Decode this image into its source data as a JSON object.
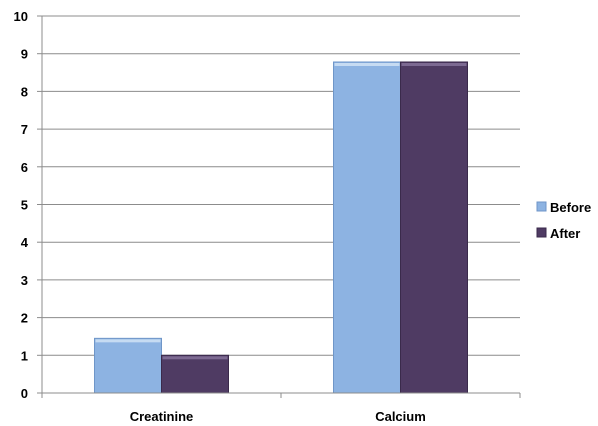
{
  "chart_data": {
    "type": "bar",
    "categories": [
      "Creatinine",
      "Calcium"
    ],
    "series": [
      {
        "name": "Before",
        "values": [
          1.45,
          8.78
        ],
        "color": "#8db3e2",
        "edge": "#6f96c8",
        "top": "#c6dbf2"
      },
      {
        "name": "After",
        "values": [
          1.0,
          8.78
        ],
        "color": "#4f3b63",
        "edge": "#3a2a4b",
        "top": "#7d6a92"
      }
    ],
    "ylim": [
      0,
      10
    ],
    "yticks": [
      0,
      1,
      2,
      3,
      4,
      5,
      6,
      7,
      8,
      9,
      10
    ],
    "grid": true,
    "legend": "right",
    "title": "",
    "xlabel": "",
    "ylabel": ""
  }
}
